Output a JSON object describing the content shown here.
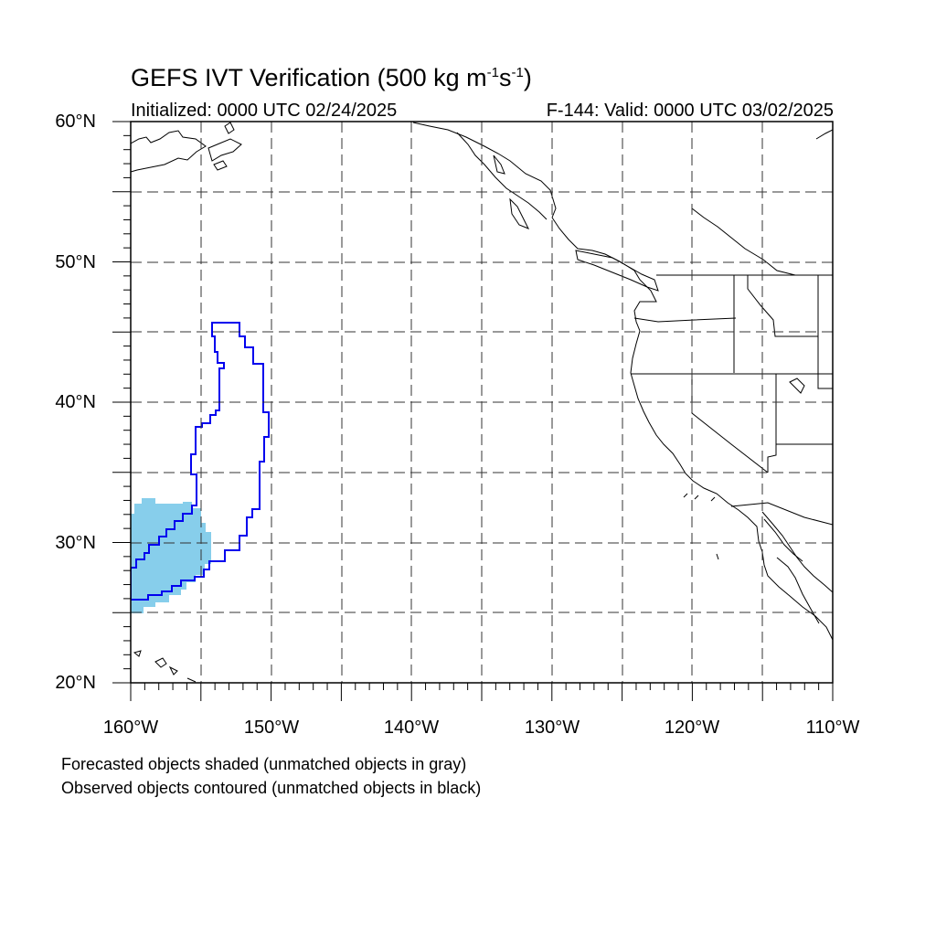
{
  "title": {
    "main": "GEFS IVT Verification (500 kg m",
    "exp1": "-1",
    "mid": "s",
    "exp2": "-1",
    "end": ")"
  },
  "initialized": "Initialized: 0000 UTC 02/24/2025",
  "valid": "F-144: Valid: 0000 UTC 03/02/2025",
  "lat_labels": [
    "60°N",
    "50°N",
    "40°N",
    "30°N",
    "20°N"
  ],
  "lon_labels": [
    "160°W",
    "150°W",
    "140°W",
    "130°W",
    "120°W",
    "110°W"
  ],
  "notes": [
    "Forecasted objects shaded (unmatched objects in gray)",
    "Observed objects contoured (unmatched objects in black)"
  ],
  "colors": {
    "forecast_fill": "#87ceeb",
    "observed_contour": "#0000ee",
    "coastline": "#000000",
    "grid": "#333333"
  }
}
